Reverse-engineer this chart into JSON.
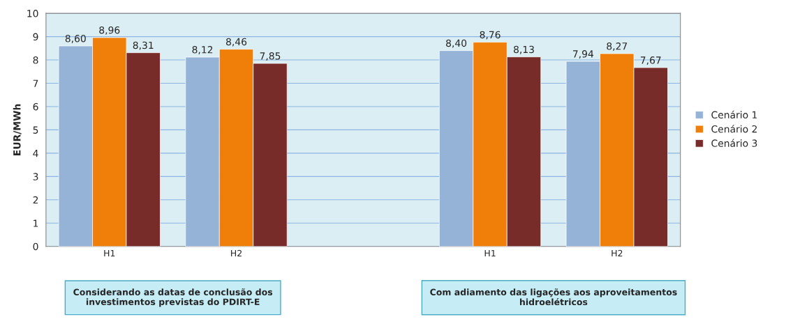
{
  "chart_data": {
    "type": "bar",
    "ylabel": "EUR/MWh",
    "categories": [
      "H1",
      "H2",
      null,
      "H1",
      "H2"
    ],
    "series": [
      {
        "name": "Cenário 1",
        "color": "#95b3d7",
        "values": [
          8.6,
          8.12,
          null,
          8.4,
          7.94
        ],
        "value_labels": [
          "8,60",
          "8,12",
          null,
          "8,40",
          "7,94"
        ]
      },
      {
        "name": "Cenário 2",
        "color": "#f07f09",
        "values": [
          8.96,
          8.46,
          null,
          8.76,
          8.27
        ],
        "value_labels": [
          "8,96",
          "8,46",
          null,
          "8,76",
          "8,27"
        ]
      },
      {
        "name": "Cenário 3",
        "color": "#772c2a",
        "values": [
          8.31,
          7.85,
          null,
          8.13,
          7.67
        ],
        "value_labels": [
          "8,31",
          "7,85",
          null,
          "8,13",
          "7,67"
        ]
      }
    ],
    "ylim": [
      0,
      10
    ],
    "yticks": [
      0,
      1,
      2,
      3,
      4,
      5,
      6,
      7,
      8,
      9,
      10
    ],
    "grid": "y",
    "legend": "right",
    "annotations": [
      "Considerando as datas de conclusão dos investimentos previstas do PDIRT-E",
      "Com adiamento das ligações aos aproveitamentos hidroelétricos"
    ]
  }
}
